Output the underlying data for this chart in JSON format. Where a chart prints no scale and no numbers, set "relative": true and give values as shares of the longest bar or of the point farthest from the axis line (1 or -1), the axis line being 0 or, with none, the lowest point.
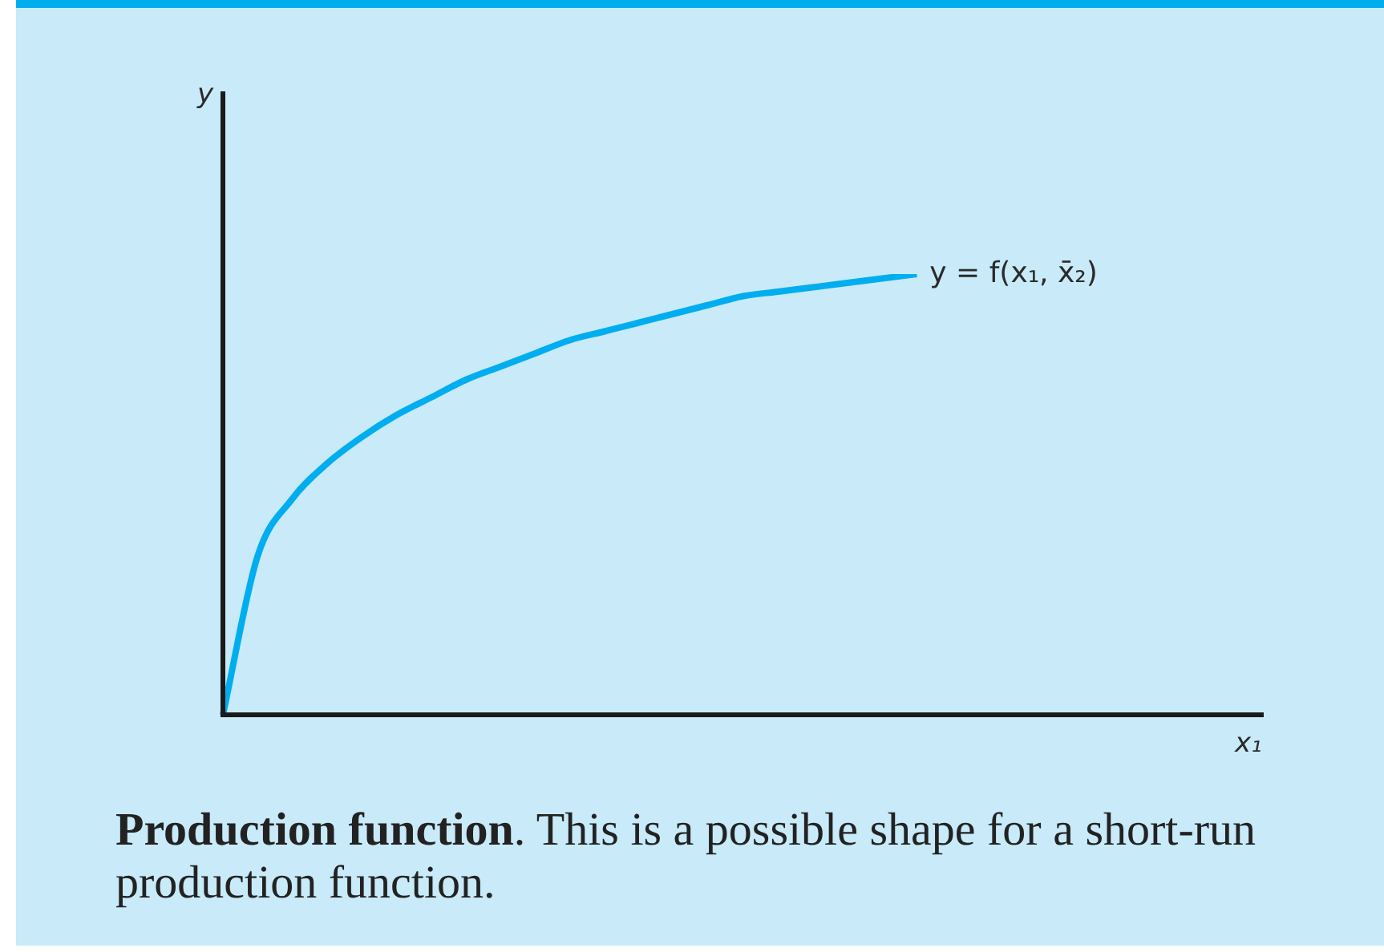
{
  "chart_data": {
    "type": "line",
    "title": "Production function",
    "subtitle": ". This is a possible shape for a short-run production function.",
    "xlabel": "x₁",
    "annotations": [
      "y"
    ],
    "relative": true,
    "marker": "none",
    "line_style": "solid",
    "categories": [
      null,
      null,
      null,
      null,
      null,
      null,
      null,
      null,
      null,
      null,
      null,
      null,
      null,
      null,
      null,
      null,
      null,
      null,
      null,
      null,
      null,
      null,
      null,
      null,
      null,
      null,
      null,
      null,
      null,
      null,
      null
    ],
    "series": [
      {
        "name": "y = f(x₁, x̄₂)",
        "color": "#00aeef",
        "values": [
          0,
          0.36,
          0.49,
          0.57,
          0.63,
          0.68,
          0.72,
          0.76,
          0.79,
          0.82,
          0.85,
          0.87,
          0.89,
          0.91,
          0.93,
          0.95,
          0.96,
          0.97,
          0.98,
          0.99,
          1,
          null,
          null,
          null,
          null,
          null,
          null,
          null,
          null,
          null,
          null
        ]
      }
    ]
  }
}
